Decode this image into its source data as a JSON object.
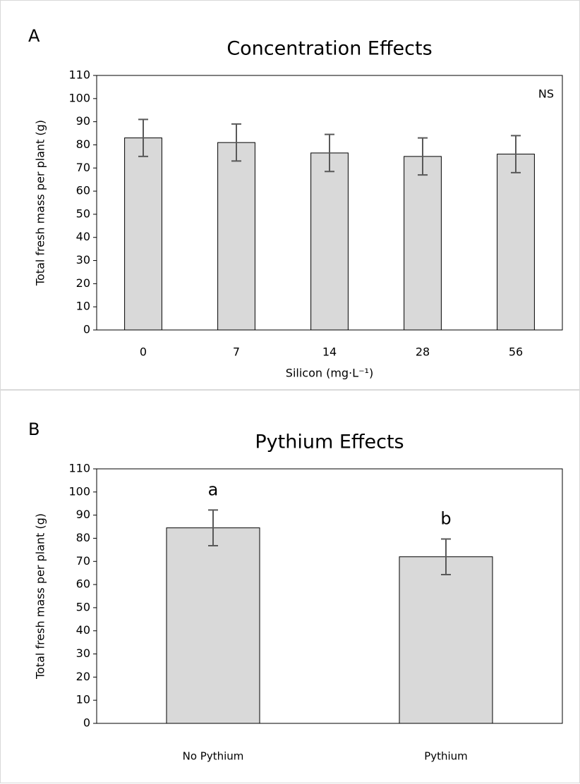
{
  "chart_data": [
    {
      "type": "bar",
      "panel": "A",
      "title": "Concentration Effects",
      "ylabel": "Total fresh mass per plant (g)",
      "xlabel": "Silicon (mg·L⁻¹)",
      "categories": [
        "0",
        "7",
        "14",
        "28",
        "56"
      ],
      "values": [
        83,
        81,
        76.5,
        75,
        76
      ],
      "errors": [
        8,
        8,
        8,
        8,
        8
      ],
      "color": "#d9d9d9",
      "error_color": "#595959",
      "annotation": "NS",
      "ylim": [
        0,
        110
      ],
      "yticks": [
        0,
        10,
        20,
        30,
        40,
        50,
        60,
        70,
        80,
        90,
        100,
        110
      ]
    },
    {
      "type": "bar",
      "panel": "B",
      "title": "Pythium Effects",
      "ylabel": "Total fresh mass per plant (g)",
      "categories": [
        "No Pythium",
        "Pythium"
      ],
      "values": [
        84.5,
        72
      ],
      "errors": [
        7.7,
        7.7
      ],
      "letters": [
        "a",
        "b"
      ],
      "color": "#d9d9d9",
      "error_color": "#595959",
      "ylim": [
        0,
        110
      ],
      "yticks": [
        0,
        10,
        20,
        30,
        40,
        50,
        60,
        70,
        80,
        90,
        100,
        110
      ]
    }
  ]
}
